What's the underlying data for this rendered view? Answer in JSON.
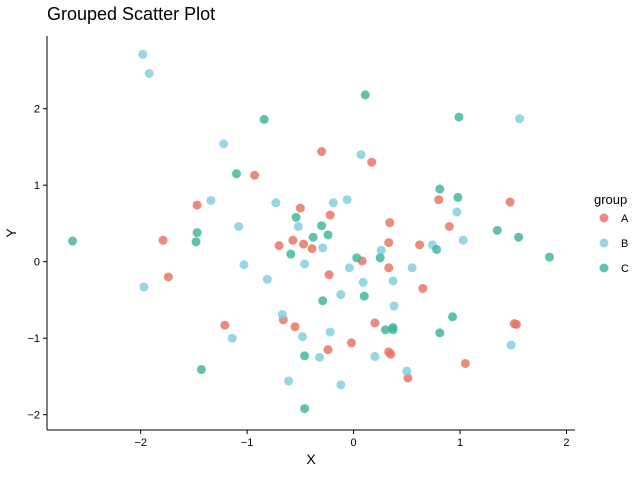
{
  "chart_data": {
    "type": "scatter",
    "title": "Grouped Scatter Plot",
    "xlabel": "X",
    "ylabel": "Y",
    "xlim": [
      -2.88,
      2.08
    ],
    "ylim": [
      -2.2,
      2.95
    ],
    "xticks": [
      -2,
      -1,
      0,
      1,
      2
    ],
    "yticks": [
      -2,
      -1,
      0,
      1,
      2
    ],
    "grid": false,
    "legend": {
      "title": "group",
      "position": "right"
    },
    "series": [
      {
        "name": "A",
        "color": "#E8705F",
        "points": [
          [
            -0.3,
            1.44
          ],
          [
            0.17,
            1.3
          ],
          [
            -0.93,
            1.13
          ],
          [
            -1.47,
            0.74
          ],
          [
            -0.5,
            0.7
          ],
          [
            -0.22,
            0.61
          ],
          [
            0.8,
            0.81
          ],
          [
            1.47,
            0.78
          ],
          [
            0.9,
            0.46
          ],
          [
            0.34,
            0.51
          ],
          [
            -1.79,
            0.28
          ],
          [
            -0.57,
            0.28
          ],
          [
            -0.7,
            0.21
          ],
          [
            -0.47,
            0.23
          ],
          [
            -0.39,
            0.17
          ],
          [
            0.33,
            0.25
          ],
          [
            0.62,
            0.22
          ],
          [
            0.08,
            0.01
          ],
          [
            -0.23,
            -0.17
          ],
          [
            -1.74,
            -0.2
          ],
          [
            0.33,
            -0.08
          ],
          [
            0.65,
            -0.35
          ],
          [
            -0.66,
            -0.76
          ],
          [
            -0.55,
            -0.85
          ],
          [
            -1.21,
            -0.83
          ],
          [
            0.2,
            -0.8
          ],
          [
            1.51,
            -0.81
          ],
          [
            1.53,
            -0.82
          ],
          [
            -0.24,
            -1.15
          ],
          [
            -0.02,
            -1.06
          ],
          [
            0.33,
            -1.18
          ],
          [
            0.35,
            -1.21
          ],
          [
            1.05,
            -1.33
          ],
          [
            0.51,
            -1.52
          ]
        ]
      },
      {
        "name": "B",
        "color": "#7FCDE2",
        "points": [
          [
            -1.98,
            2.71
          ],
          [
            -1.92,
            2.46
          ],
          [
            1.56,
            1.87
          ],
          [
            -1.22,
            1.54
          ],
          [
            0.07,
            1.4
          ],
          [
            -0.73,
            0.77
          ],
          [
            -0.06,
            0.81
          ],
          [
            -1.34,
            0.8
          ],
          [
            -0.19,
            0.77
          ],
          [
            0.97,
            0.65
          ],
          [
            -1.08,
            0.46
          ],
          [
            -0.52,
            0.46
          ],
          [
            0.26,
            0.15
          ],
          [
            -0.29,
            0.18
          ],
          [
            0.74,
            0.22
          ],
          [
            1.03,
            0.28
          ],
          [
            -1.03,
            -0.04
          ],
          [
            -0.46,
            -0.03
          ],
          [
            -0.04,
            -0.08
          ],
          [
            0.55,
            -0.08
          ],
          [
            -0.81,
            -0.23
          ],
          [
            0.09,
            -0.27
          ],
          [
            0.37,
            -0.25
          ],
          [
            -1.97,
            -0.33
          ],
          [
            -0.12,
            -0.43
          ],
          [
            0.38,
            -0.58
          ],
          [
            -0.67,
            -0.69
          ],
          [
            -1.14,
            -1.0
          ],
          [
            -0.48,
            -0.98
          ],
          [
            -0.22,
            -0.92
          ],
          [
            1.48,
            -1.09
          ],
          [
            0.2,
            -1.24
          ],
          [
            -0.32,
            -1.25
          ],
          [
            0.5,
            -1.43
          ],
          [
            -0.61,
            -1.56
          ],
          [
            -0.12,
            -1.61
          ]
        ]
      },
      {
        "name": "C",
        "color": "#3BB49B",
        "points": [
          [
            0.11,
            2.18
          ],
          [
            -0.84,
            1.86
          ],
          [
            0.99,
            1.89
          ],
          [
            -1.1,
            1.15
          ],
          [
            0.81,
            0.95
          ],
          [
            0.98,
            0.84
          ],
          [
            -0.54,
            0.58
          ],
          [
            -0.3,
            0.47
          ],
          [
            -1.47,
            0.38
          ],
          [
            -0.38,
            0.32
          ],
          [
            -0.24,
            0.35
          ],
          [
            1.35,
            0.41
          ],
          [
            1.55,
            0.32
          ],
          [
            -2.64,
            0.27
          ],
          [
            -1.48,
            0.26
          ],
          [
            0.78,
            0.16
          ],
          [
            -0.59,
            0.1
          ],
          [
            0.03,
            0.05
          ],
          [
            0.25,
            0.05
          ],
          [
            1.84,
            0.06
          ],
          [
            0.1,
            -0.45
          ],
          [
            -0.29,
            -0.51
          ],
          [
            0.37,
            -0.86
          ],
          [
            0.3,
            -0.89
          ],
          [
            0.37,
            -0.89
          ],
          [
            0.81,
            -0.93
          ],
          [
            0.93,
            -0.72
          ],
          [
            -0.46,
            -1.23
          ],
          [
            -1.43,
            -1.41
          ],
          [
            -0.46,
            -1.92
          ]
        ]
      }
    ]
  }
}
